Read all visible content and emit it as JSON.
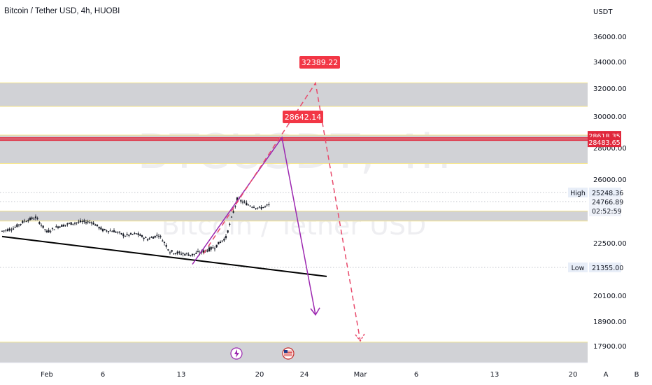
{
  "header": {
    "symbol_title": "Bitcoin / Tether USD, 4h, HUOBI"
  },
  "watermark": {
    "primary": "BTCUSDT, 4h",
    "secondary": "Bitcoin / Tether USD"
  },
  "scale_toggles": {
    "auto": "A",
    "log": "B"
  },
  "event_icons": [
    "lightning-icon",
    "us-flag-icon"
  ],
  "colors": {
    "candles": "#131722",
    "zone_fill": "#cfd0d4",
    "zone_border": "#f5e58a",
    "resistance": "#e0283c",
    "projection": "#9c27b0",
    "target_dashed": "#e84a6b",
    "price_tag": "#f23645",
    "trendline": "#000000"
  },
  "chart_data": {
    "type": "candlestick",
    "title": "Bitcoin / Tether USD, 4h, HUOBI",
    "y_unit": "USDT",
    "ylim": [
      17300,
      37100
    ],
    "y_ticks": [
      "36000.00",
      "34000.00",
      "32000.00",
      "30000.00",
      "28000.00",
      "26000.00",
      "22500.00",
      "20100.00",
      "18900.00",
      "17900.00"
    ],
    "x_ticks": [
      "Feb",
      "6",
      "13",
      "20",
      "24",
      "Mar",
      "6",
      "13",
      "20"
    ],
    "x_range": [
      "2023-01-28",
      "2023-03-23"
    ],
    "price_axis_labels": [
      {
        "text": "High",
        "value": "25248.36"
      },
      {
        "text": "",
        "value": "24766.89"
      },
      {
        "text": "",
        "value": "02:52:59"
      },
      {
        "text": "Low",
        "value": "21355.00"
      }
    ],
    "resistance_labels": [
      "28618.35",
      "28483.65"
    ],
    "targets": [
      "32389.22",
      "28642.14"
    ],
    "zones": [
      {
        "from": 30700,
        "to": 32400
      },
      {
        "from": 27000,
        "to": 28800
      },
      {
        "from": 23700,
        "to": 24250
      },
      {
        "from": 17300,
        "to": 18050
      }
    ],
    "resistance_lines": [
      28618.35,
      28483.65
    ],
    "dotted_levels": [
      25248.36,
      24766.89,
      21355.0
    ],
    "trendline": [
      [
        "2023-01-28",
        22850
      ],
      [
        "2023-02-26",
        20950
      ]
    ],
    "projection_solid": [
      [
        "2023-02-14",
        21500
      ],
      [
        "2023-02-22",
        28642.14
      ],
      [
        "2023-02-25",
        19200
      ]
    ],
    "projection_dashed": [
      [
        "2023-02-15",
        22000
      ],
      [
        "2023-02-25",
        32389.22
      ],
      [
        "2023-03-01",
        18100
      ]
    ],
    "candles_close": [
      [
        "2023-01-28",
        23150
      ],
      [
        "2023-01-29",
        23300
      ],
      [
        "2023-01-30",
        23700
      ],
      [
        "2023-01-31",
        23900
      ],
      [
        "2023-02-01",
        23100
      ],
      [
        "2023-02-02",
        23400
      ],
      [
        "2023-02-03",
        23550
      ],
      [
        "2023-02-04",
        23650
      ],
      [
        "2023-02-05",
        23650
      ],
      [
        "2023-02-06",
        23200
      ],
      [
        "2023-02-07",
        23150
      ],
      [
        "2023-02-08",
        22900
      ],
      [
        "2023-02-09",
        23000
      ],
      [
        "2023-02-10",
        22700
      ],
      [
        "2023-02-11",
        22950
      ],
      [
        "2023-02-12",
        22100
      ],
      [
        "2023-02-13",
        22000
      ],
      [
        "2023-02-14",
        21950
      ],
      [
        "2023-02-15",
        22100
      ],
      [
        "2023-02-16",
        22300
      ],
      [
        "2023-02-17",
        22800
      ],
      [
        "2023-02-18",
        24900
      ],
      [
        "2023-02-19",
        24600
      ],
      [
        "2023-02-20",
        24400
      ],
      [
        "2023-02-21",
        24600
      ]
    ]
  }
}
